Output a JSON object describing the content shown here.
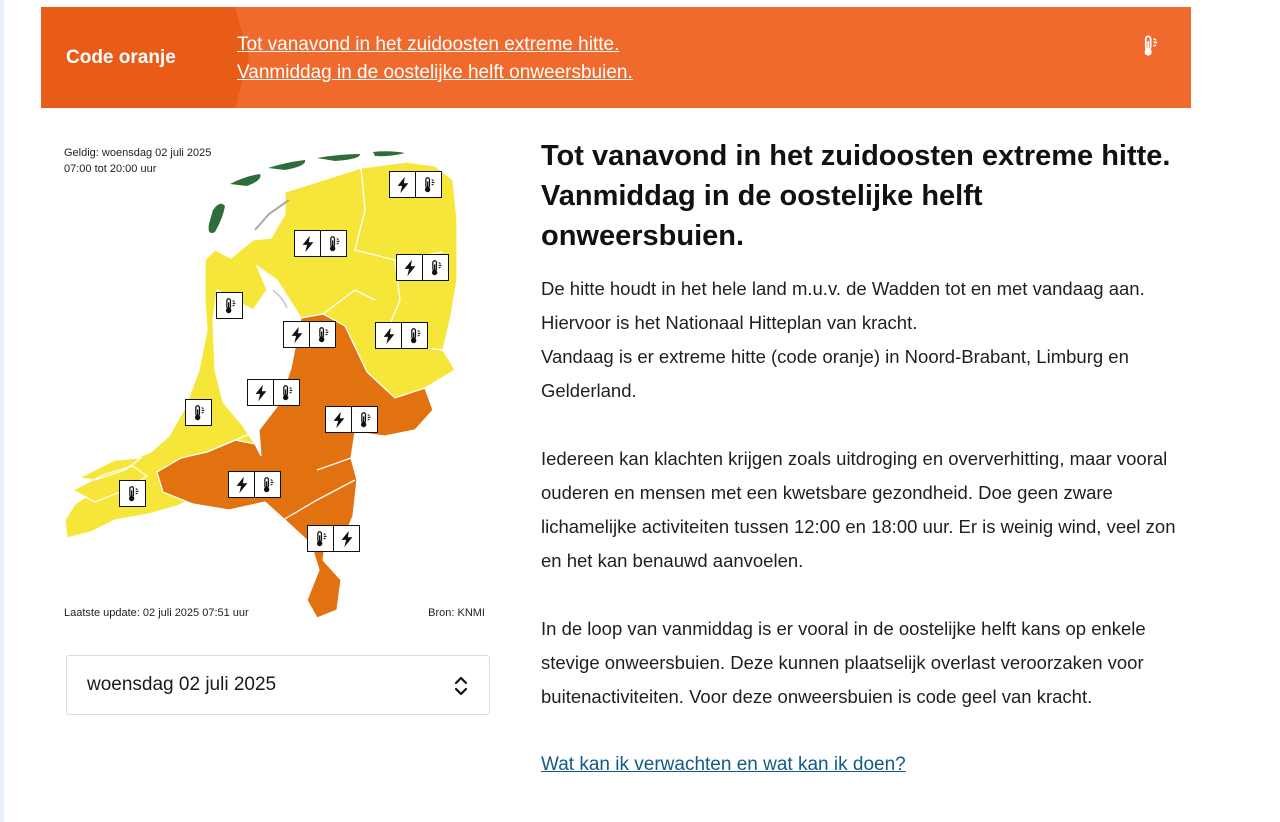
{
  "banner": {
    "code_label": "Code oranje",
    "messages": [
      "Tot vanavond in het zuidoosten extreme hitte.",
      "Vanmiddag in de oostelijke helft onweersbuien."
    ],
    "icon": "thermometer-icon",
    "color": "#ef6a2c",
    "code_color": "#e85c17"
  },
  "map": {
    "valid_line1": "Geldig: woensdag 02 juli 2025",
    "valid_line2": "07:00 tot 20:00 uur",
    "last_update": "Laatste update: 02 juli 2025 07:51 uur",
    "source": "Bron: KNMI",
    "colors": {
      "yellow": "#f6e63a",
      "orange": "#e2710f",
      "wadden": "#2e6d3a"
    }
  },
  "date_select": {
    "selected": "woensdag 02 juli 2025"
  },
  "article": {
    "title": "Tot vanavond in het zuidoosten extreme hitte. Vanmiddag in de oostelijke helft onweersbuien.",
    "p1_line1": "De hitte houdt in het hele land m.u.v. de Wadden tot en met vandaag aan. Hiervoor is het Nationaal Hitteplan van kracht.",
    "p1_line2": "Vandaag is er extreme hitte (code oranje) in Noord-Brabant, Limburg en Gelderland.",
    "p2": "Iedereen kan klachten krijgen zoals uitdroging en oververhitting, maar vooral ouderen en mensen met een kwetsbare gezondheid. Doe geen zware lichamelijke activiteiten tussen 12:00 en 18:00 uur. Er is weinig wind, veel zon en het kan benauwd aanvoelen.",
    "p3": "In de loop van vanmiddag is er vooral in de oostelijke helft kans op enkele stevige onweersbuien. Deze kunnen plaatselijk overlast veroorzaken voor buitenactiviteiten. Voor deze onweersbuien is code geel van kracht.",
    "link": "Wat kan ik verwachten en wat kan ik doen?"
  }
}
